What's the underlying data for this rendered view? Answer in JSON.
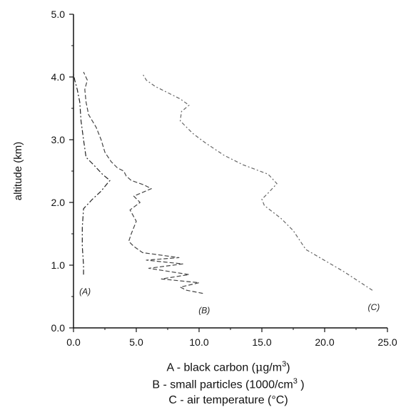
{
  "chart_data": {
    "type": "line",
    "ylabel": "altitude (km)",
    "xlabel": "",
    "xlim": [
      0,
      25
    ],
    "ylim": [
      0,
      5
    ],
    "x_ticks": [
      "0.0",
      "5.0",
      "10.0",
      "15.0",
      "20.0",
      "25.0"
    ],
    "y_ticks": [
      "0.0",
      "1.0",
      "2.0",
      "3.0",
      "4.0",
      "5.0"
    ],
    "grid": false,
    "series": [
      {
        "name": "A",
        "label": "(A)",
        "color": "#222222",
        "x": [
          0.8,
          0.8,
          0.7,
          0.7,
          0.8,
          1.5,
          2.2,
          2.6,
          2.9,
          2.3,
          1.6,
          1.0,
          0.8,
          0.6,
          0.5,
          0.3,
          0.1,
          0.0
        ],
        "y": [
          0.85,
          1.0,
          1.3,
          1.6,
          1.9,
          2.05,
          2.18,
          2.28,
          2.35,
          2.45,
          2.6,
          2.72,
          3.0,
          3.3,
          3.6,
          3.8,
          3.95,
          4.05
        ]
      },
      {
        "name": "B",
        "label": "(B)",
        "color": "#444444",
        "x": [
          10.3,
          9.0,
          8.5,
          10.0,
          7.0,
          9.2,
          6.0,
          8.7,
          5.8,
          8.4,
          5.5,
          4.8,
          4.4,
          4.6,
          5.0,
          4.5,
          5.3,
          4.8,
          6.2,
          5.6,
          4.6,
          4.2,
          4.0,
          3.5,
          3.0,
          2.5,
          2.2,
          1.8,
          1.2,
          1.0,
          0.9,
          1.1,
          0.8
        ],
        "y": [
          0.55,
          0.6,
          0.65,
          0.72,
          0.78,
          0.85,
          0.95,
          1.02,
          1.08,
          1.12,
          1.2,
          1.3,
          1.38,
          1.5,
          1.7,
          1.88,
          2.0,
          2.1,
          2.22,
          2.28,
          2.35,
          2.42,
          2.5,
          2.55,
          2.65,
          2.8,
          3.0,
          3.2,
          3.4,
          3.6,
          3.8,
          3.95,
          4.08
        ]
      },
      {
        "name": "C",
        "label": "(C)",
        "color": "#666666",
        "x": [
          23.8,
          21.5,
          18.5,
          17.5,
          16.5,
          15.2,
          15.0,
          15.5,
          16.2,
          15.5,
          13.5,
          12.0,
          10.5,
          9.5,
          8.5,
          8.6,
          9.2,
          8.5,
          7.5,
          6.5,
          5.8,
          5.5
        ],
        "y": [
          0.6,
          0.9,
          1.25,
          1.55,
          1.75,
          1.95,
          2.05,
          2.15,
          2.3,
          2.45,
          2.6,
          2.75,
          2.95,
          3.1,
          3.3,
          3.45,
          3.55,
          3.65,
          3.75,
          3.85,
          3.95,
          4.05
        ]
      }
    ]
  },
  "legend_lines": {
    "a_prefix": "A - black carbon (",
    "a_mu": "μ",
    "a_unit": "g/m",
    "a_sup": "3",
    "a_suffix": ")",
    "b_prefix": "B - small particles (1000/cm",
    "b_sup": "3",
    "b_suffix": " )",
    "c_text": "C - air temperature (°C)"
  }
}
